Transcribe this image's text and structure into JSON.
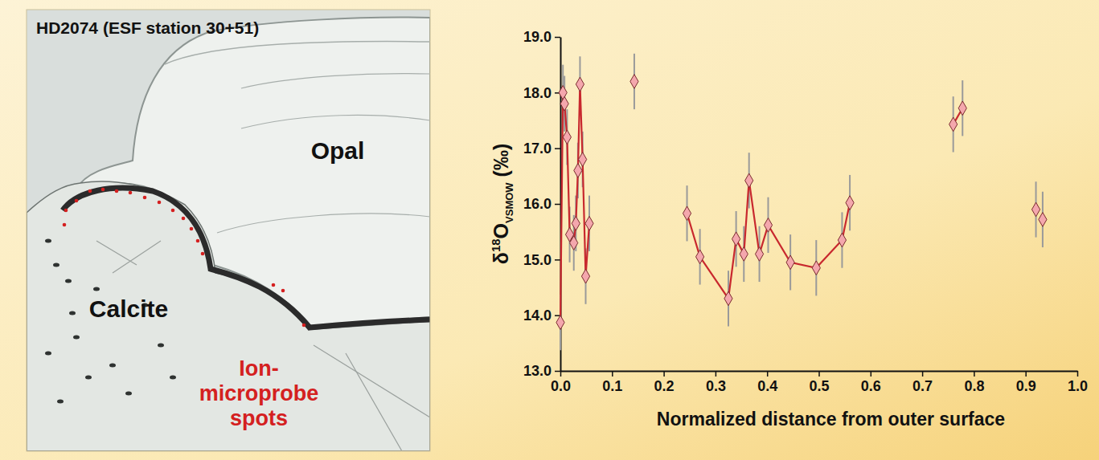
{
  "image_panel": {
    "title": "HD2074 (ESF station 30+51)",
    "labels": [
      "Opal",
      "Calcite"
    ],
    "spots_label": [
      "Ion-",
      "microprobe",
      "spots"
    ],
    "spots_color": "#d42020"
  },
  "chart_data": {
    "type": "scatter",
    "xlabel": "Normalized distance from outer surface",
    "ylabel": [
      "δ",
      "18",
      "O",
      "VSMOW",
      " (‰)"
    ],
    "xlim": [
      0,
      1.0
    ],
    "ylim": [
      13.0,
      19.0
    ],
    "xticks": [
      {
        "value": 0,
        "label": "0.0"
      },
      {
        "value": 0.1,
        "label": "0.1"
      },
      {
        "value": 0.2,
        "label": "0.2"
      },
      {
        "value": 0.3,
        "label": "0.3"
      },
      {
        "value": 0.4,
        "label": "0.4"
      },
      {
        "value": 0.5,
        "label": "0.5"
      },
      {
        "value": 0.6,
        "label": "0.6"
      },
      {
        "value": 0.7,
        "label": "0.7"
      },
      {
        "value": 0.8,
        "label": "0.8"
      },
      {
        "value": 0.9,
        "label": "0.9"
      },
      {
        "value": 1.0,
        "label": "1.0"
      }
    ],
    "yticks": [
      {
        "value": 13,
        "label": "13.0"
      },
      {
        "value": 14,
        "label": "14.0"
      },
      {
        "value": 15,
        "label": "15.0"
      },
      {
        "value": 16,
        "label": "16.0"
      },
      {
        "value": 17,
        "label": "17.0"
      },
      {
        "value": 18,
        "label": "18.0"
      },
      {
        "value": 19,
        "label": "19.0"
      }
    ],
    "grid": false,
    "series": [
      {
        "color": "#c8282e",
        "marker": "diamond",
        "line_style": "solid",
        "x": [
          0.0,
          0.005,
          0.008,
          0.013,
          0.018,
          0.026,
          0.03,
          0.034,
          0.038,
          0.043,
          0.049,
          0.056
        ],
        "values": [
          13.87,
          18.0,
          17.8,
          17.2,
          15.45,
          15.3,
          15.65,
          16.6,
          18.15,
          16.8,
          14.7,
          15.65
        ],
        "error": [
          0.5,
          0.5,
          0.5,
          0.5,
          0.5,
          0.5,
          0.5,
          0.5,
          0.5,
          0.5,
          0.5,
          0.5
        ]
      },
      {
        "color": "#c8282e",
        "marker": "diamond",
        "line_style": "none",
        "x": [
          0.143
        ],
        "values": [
          18.2
        ],
        "error": [
          0.5
        ]
      },
      {
        "color": "#c8282e",
        "marker": "diamond",
        "line_style": "solid",
        "x": [
          0.245,
          0.27,
          0.325,
          0.34,
          0.355,
          0.365,
          0.385,
          0.402,
          0.445,
          0.495,
          0.545,
          0.56
        ],
        "values": [
          15.83,
          15.05,
          14.3,
          15.37,
          15.1,
          16.42,
          15.1,
          15.62,
          14.95,
          14.85,
          15.35,
          16.02
        ],
        "error": [
          0.5,
          0.5,
          0.5,
          0.5,
          0.5,
          0.5,
          0.5,
          0.5,
          0.5,
          0.5,
          0.5,
          0.5
        ]
      },
      {
        "color": "#c8282e",
        "marker": "diamond",
        "line_style": "solid",
        "x": [
          0.76,
          0.778
        ],
        "values": [
          17.43,
          17.72
        ],
        "error": [
          0.5,
          0.5
        ]
      },
      {
        "color": "#c8282e",
        "marker": "diamond",
        "line_style": "none",
        "x": [
          0.92,
          0.933
        ],
        "values": [
          15.9,
          15.72
        ],
        "error": [
          0.5,
          0.5
        ]
      }
    ]
  }
}
